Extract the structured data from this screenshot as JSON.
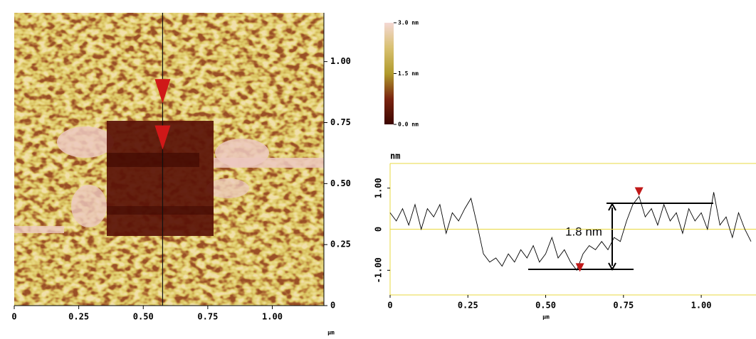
{
  "chart_data": [
    {
      "type": "image",
      "x_label": "µm",
      "xlim": [
        0,
        1.2
      ],
      "ylim": [
        0,
        1.2
      ],
      "xticks": [
        0,
        0.25,
        {
          "value": 0.5,
          "label": "0.50"
        },
        0.75,
        {
          "value": 1,
          "label": "1.00"
        }
      ],
      "yticks": [
        0,
        0.25,
        {
          "value": 0.5,
          "label": "0.50"
        },
        0.75,
        {
          "value": 1,
          "label": "1.00"
        }
      ],
      "section_x": 0.575,
      "cursors_y": [
        0.87,
        0.68
      ],
      "cursor_color": "#d01818",
      "colorbar": {
        "lim": [
          0,
          3
        ],
        "ticks": [
          {
            "value": 3,
            "label": "3.0 nm"
          },
          {
            "value": 1.5,
            "label": "1.5 nm"
          },
          {
            "value": 0,
            "label": "0.0 nm"
          }
        ],
        "colors": [
          "#3c0600",
          "#7a2410",
          "#b09a2c",
          "#d8c070",
          "#f4d8d4"
        ]
      }
    },
    {
      "type": "line",
      "y_label": "nm",
      "x_label": "µm",
      "annotation": "1.8 nm",
      "xlim": [
        0,
        1.176
      ],
      "ylim": [
        -1.6,
        1.6
      ],
      "xticks": [
        0,
        0.25,
        {
          "value": 0.5,
          "label": "0.50"
        },
        0.75,
        {
          "value": 1,
          "label": "1.00"
        }
      ],
      "yticks": [
        {
          "value": -1,
          "label": "-1.00"
        },
        0,
        {
          "value": 1,
          "label": "1.00"
        }
      ],
      "color": "#000000",
      "grid_color": "#e8d840",
      "x": [
        0,
        0.02,
        0.04,
        0.06,
        0.08,
        0.1,
        0.12,
        0.14,
        0.16,
        0.18,
        0.2,
        0.22,
        0.24,
        0.26,
        0.28,
        0.3,
        0.32,
        0.34,
        0.36,
        0.38,
        0.4,
        0.42,
        0.44,
        0.46,
        0.48,
        0.5,
        0.52,
        0.54,
        0.56,
        0.58,
        0.6,
        0.62,
        0.64,
        0.66,
        0.68,
        0.7,
        0.72,
        0.74,
        0.76,
        0.78,
        0.8,
        0.82,
        0.84,
        0.86,
        0.88,
        0.9,
        0.92,
        0.94,
        0.96,
        0.98,
        1,
        1.02,
        1.04,
        1.06,
        1.08,
        1.1,
        1.12,
        1.14,
        1.16
      ],
      "values": [
        0.4,
        0.2,
        0.5,
        0.1,
        0.6,
        0.0,
        0.5,
        0.3,
        0.6,
        -0.1,
        0.4,
        0.2,
        0.5,
        0.75,
        0.1,
        -0.6,
        -0.8,
        -0.7,
        -0.9,
        -0.6,
        -0.8,
        -0.5,
        -0.7,
        -0.4,
        -0.8,
        -0.6,
        -0.2,
        -0.7,
        -0.5,
        -0.8,
        -1.0,
        -0.6,
        -0.4,
        -0.5,
        -0.3,
        -0.5,
        -0.2,
        -0.3,
        0.2,
        0.6,
        0.8,
        0.3,
        0.5,
        0.1,
        0.6,
        0.2,
        0.4,
        -0.1,
        0.5,
        0.2,
        0.4,
        0.0,
        0.9,
        0.1,
        0.3,
        -0.2,
        0.4,
        0.0,
        -0.3
      ],
      "markers": {
        "x": [
          0.8,
          0.61
        ],
        "y": [
          0.9,
          -0.95
        ],
        "color": "#c01818"
      }
    }
  ]
}
